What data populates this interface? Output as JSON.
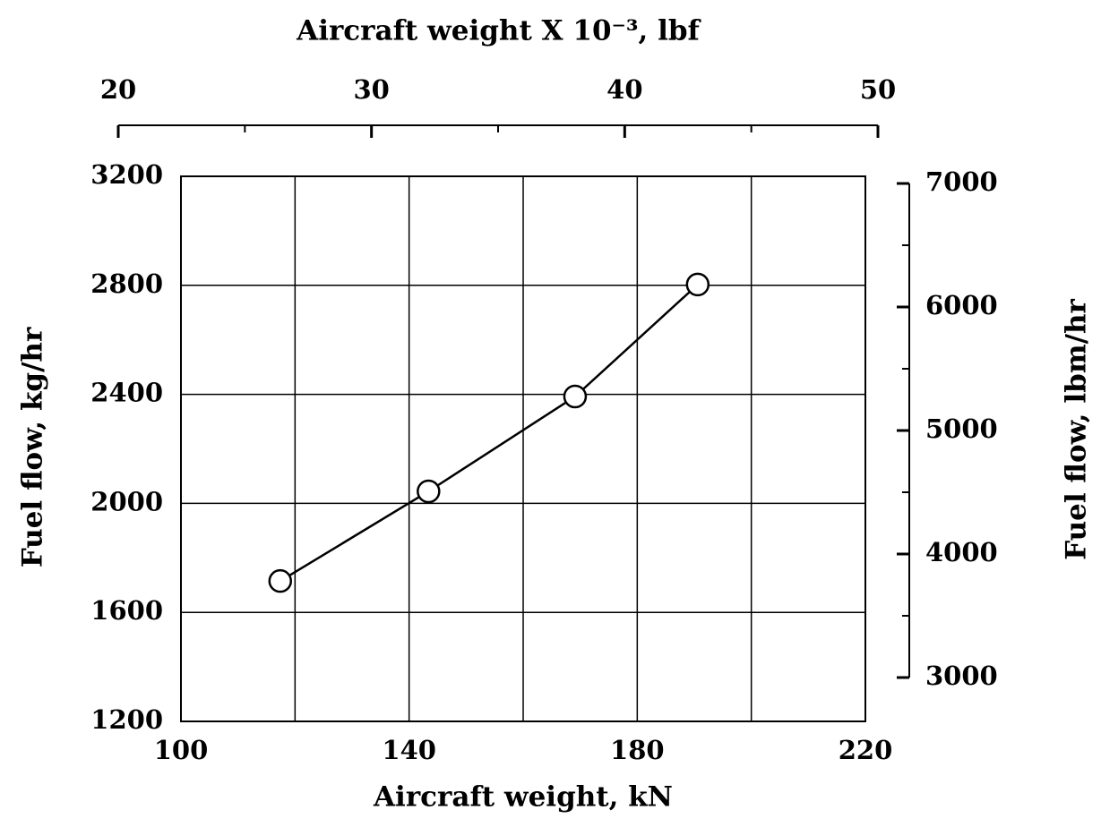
{
  "chart_data": {
    "type": "line",
    "xlabel": "Aircraft weight, kN",
    "ylabel": "Fuel flow, kg/hr",
    "x2label": "Aircraft weight X 10⁻³, lbf",
    "y2label": "Fuel flow, lbm/hr",
    "x": [
      117.4,
      143.4,
      169.1,
      190.6
    ],
    "series": [
      {
        "color": "#000000",
        "values": [
          1715,
          2044,
          2392,
          2803
        ]
      }
    ],
    "xlim": [
      100,
      220
    ],
    "xticks": [
      100,
      120,
      140,
      160,
      180,
      200,
      220
    ],
    "xtick_labels_shown": [
      100,
      140,
      180,
      220
    ],
    "ylim": [
      1200,
      3200
    ],
    "yticks": [
      1200,
      1600,
      2000,
      2400,
      2800,
      3200
    ],
    "x2lim": [
      20,
      50
    ],
    "x2ticks": [
      20,
      30,
      40,
      50
    ],
    "x2minor_ticks": [
      25,
      35,
      45
    ],
    "y2lim": [
      3000,
      7000
    ],
    "y2ticks": [
      3000,
      4000,
      5000,
      6000,
      7000
    ],
    "y2minor_ticks": [
      3500,
      4500,
      5500,
      6500
    ],
    "grid": true,
    "marker": "circle"
  }
}
